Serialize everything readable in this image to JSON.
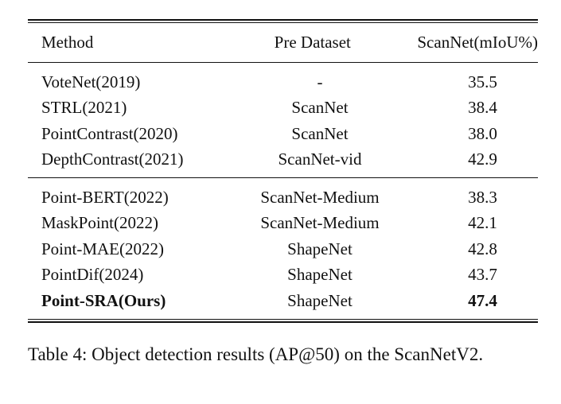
{
  "table": {
    "headers": {
      "method": "Method",
      "pre_dataset": "Pre Dataset",
      "scannet": "ScanNet(mIoU%)"
    },
    "group1": [
      {
        "method": "VoteNet(2019)",
        "pre_dataset": "-",
        "scannet": "35.5"
      },
      {
        "method": "STRL(2021)",
        "pre_dataset": "ScanNet",
        "scannet": "38.4"
      },
      {
        "method": "PointContrast(2020)",
        "pre_dataset": "ScanNet",
        "scannet": "38.0"
      },
      {
        "method": "DepthContrast(2021)",
        "pre_dataset": "ScanNet-vid",
        "scannet": "42.9"
      }
    ],
    "group2": [
      {
        "method": "Point-BERT(2022)",
        "pre_dataset": "ScanNet-Medium",
        "scannet": "38.3"
      },
      {
        "method": "MaskPoint(2022)",
        "pre_dataset": "ScanNet-Medium",
        "scannet": "42.1"
      },
      {
        "method": "Point-MAE(2022)",
        "pre_dataset": "ShapeNet",
        "scannet": "42.8"
      },
      {
        "method": "PointDif(2024)",
        "pre_dataset": "ShapeNet",
        "scannet": "43.7"
      },
      {
        "method": "Point-SRA(Ours)",
        "pre_dataset": "ShapeNet",
        "scannet": "47.4"
      }
    ]
  },
  "caption": "Table 4: Object detection results (AP@50) on the ScanNetV2."
}
